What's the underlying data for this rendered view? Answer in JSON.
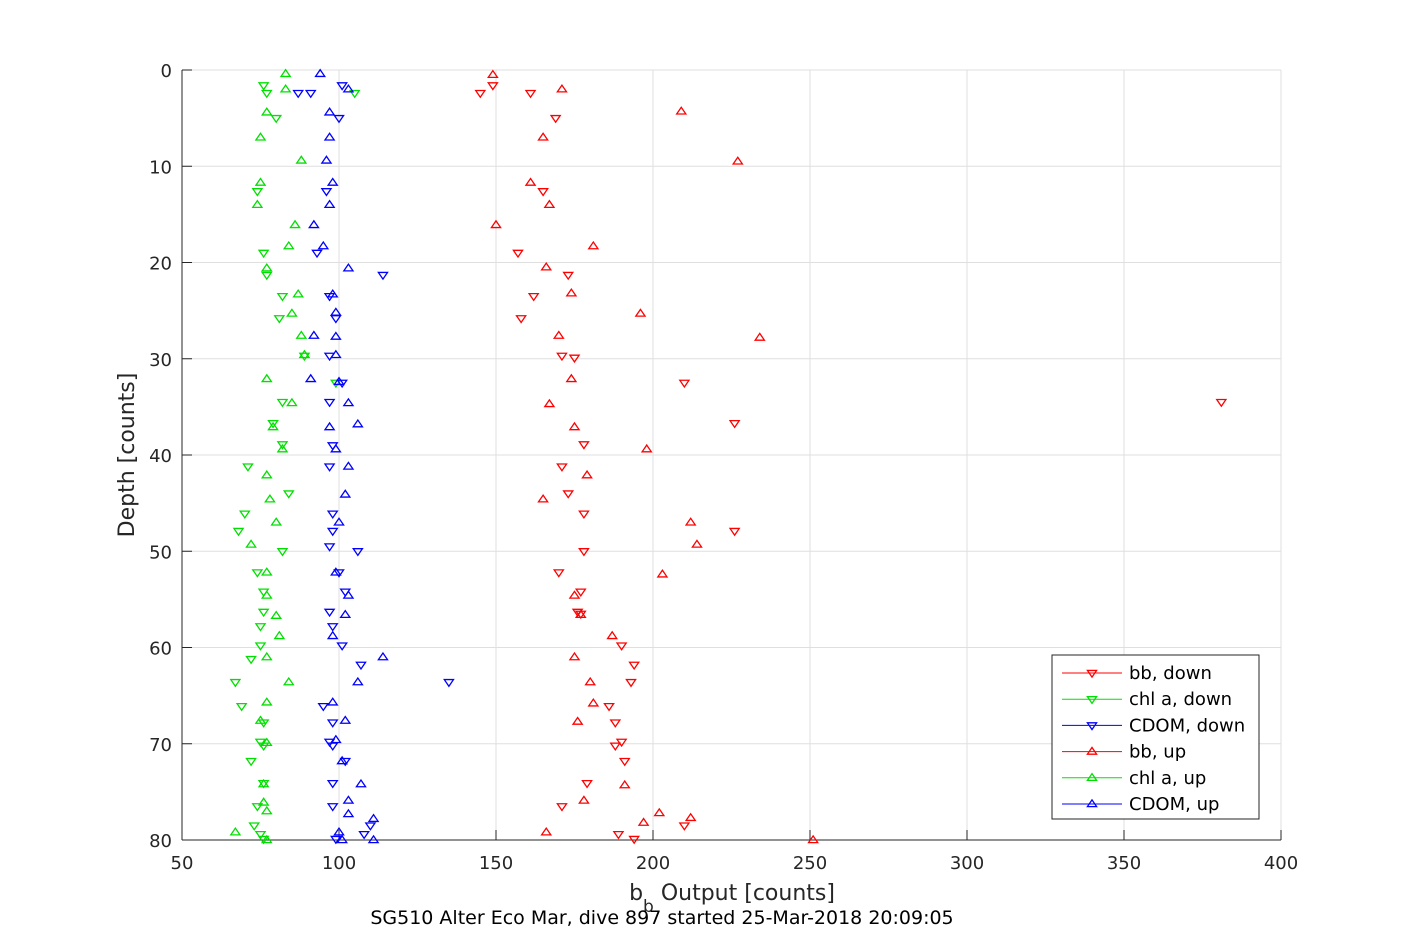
{
  "chart_data": {
    "type": "scatter",
    "title": "",
    "xlabel_main": "b",
    "xlabel_sub": "b",
    "xlabel_rest": " Output [counts]",
    "ylabel": "Depth [counts]",
    "caption": "SG510 Alter Eco Mar, dive 897 started 25-Mar-2018 20:09:05",
    "xlim": [
      50,
      400
    ],
    "ylim": [
      0,
      80
    ],
    "y_reversed": true,
    "grid": true,
    "xticks": [
      "50",
      "100",
      "150",
      "200",
      "250",
      "300",
      "350",
      "400"
    ],
    "yticks": [
      "0",
      "10",
      "20",
      "30",
      "40",
      "50",
      "60",
      "70",
      "80"
    ],
    "legend_position": "bottom-right",
    "series": [
      {
        "name": "bb, down",
        "color": "#ff0000",
        "marker": "triangle-down",
        "points": [
          [
            149,
            1.6
          ],
          [
            145,
            2.4
          ],
          [
            161,
            2.4
          ],
          [
            169,
            5.0
          ],
          [
            165,
            12.6
          ],
          [
            157,
            19.0
          ],
          [
            173,
            21.3
          ],
          [
            162,
            23.5
          ],
          [
            158,
            25.8
          ],
          [
            171,
            29.7
          ],
          [
            175,
            29.9
          ],
          [
            210,
            32.5
          ],
          [
            381,
            34.5
          ],
          [
            226,
            36.7
          ],
          [
            178,
            38.9
          ],
          [
            171,
            41.2
          ],
          [
            173,
            44.0
          ],
          [
            178,
            46.1
          ],
          [
            226,
            47.9
          ],
          [
            178,
            50.0
          ],
          [
            170,
            52.2
          ],
          [
            177,
            54.2
          ],
          [
            176,
            56.3
          ],
          [
            177,
            56.5
          ],
          [
            190,
            59.8
          ],
          [
            194,
            61.8
          ],
          [
            193,
            63.6
          ],
          [
            186,
            66.1
          ],
          [
            188,
            67.8
          ],
          [
            190,
            69.8
          ],
          [
            188,
            70.2
          ],
          [
            191,
            71.8
          ],
          [
            179,
            74.1
          ],
          [
            171,
            76.5
          ],
          [
            210,
            78.5
          ],
          [
            189,
            79.4
          ],
          [
            194,
            79.9
          ]
        ]
      },
      {
        "name": "chl a, down",
        "color": "#00e000",
        "marker": "triangle-down",
        "points": [
          [
            76,
            1.6
          ],
          [
            77,
            2.4
          ],
          [
            105,
            2.4
          ],
          [
            80,
            5.0
          ],
          [
            74,
            12.6
          ],
          [
            76,
            19.0
          ],
          [
            77,
            21.3
          ],
          [
            82,
            23.5
          ],
          [
            81,
            25.8
          ],
          [
            89,
            29.7
          ],
          [
            99,
            32.5
          ],
          [
            82,
            34.5
          ],
          [
            79,
            36.7
          ],
          [
            82,
            38.9
          ],
          [
            71,
            41.2
          ],
          [
            84,
            44.0
          ],
          [
            70,
            46.1
          ],
          [
            68,
            47.9
          ],
          [
            82,
            50.0
          ],
          [
            74,
            52.2
          ],
          [
            76,
            54.2
          ],
          [
            76,
            56.3
          ],
          [
            75,
            57.8
          ],
          [
            75,
            59.8
          ],
          [
            72,
            61.2
          ],
          [
            67,
            63.6
          ],
          [
            69,
            66.1
          ],
          [
            76,
            67.8
          ],
          [
            75,
            69.8
          ],
          [
            76,
            70.2
          ],
          [
            72,
            71.8
          ],
          [
            76,
            74.1
          ],
          [
            74,
            76.5
          ],
          [
            73,
            78.5
          ],
          [
            75,
            79.4
          ],
          [
            76,
            79.9
          ]
        ]
      },
      {
        "name": "CDOM, down",
        "color": "#0000ff",
        "marker": "triangle-down",
        "points": [
          [
            101,
            1.6
          ],
          [
            87,
            2.4
          ],
          [
            91,
            2.4
          ],
          [
            100,
            5.0
          ],
          [
            96,
            12.6
          ],
          [
            93,
            19.0
          ],
          [
            114,
            21.3
          ],
          [
            97,
            23.5
          ],
          [
            99,
            25.8
          ],
          [
            97,
            29.7
          ],
          [
            101,
            32.5
          ],
          [
            97,
            34.5
          ],
          [
            98,
            39.0
          ],
          [
            97,
            41.2
          ],
          [
            98,
            46.1
          ],
          [
            98,
            47.9
          ],
          [
            97,
            49.5
          ],
          [
            106,
            50.0
          ],
          [
            100,
            52.2
          ],
          [
            102,
            54.2
          ],
          [
            97,
            56.3
          ],
          [
            98,
            57.8
          ],
          [
            101,
            59.8
          ],
          [
            107,
            61.8
          ],
          [
            135,
            63.6
          ],
          [
            95,
            66.1
          ],
          [
            98,
            67.8
          ],
          [
            97,
            69.8
          ],
          [
            98,
            70.2
          ],
          [
            102,
            71.8
          ],
          [
            98,
            74.1
          ],
          [
            98,
            76.5
          ],
          [
            110,
            78.5
          ],
          [
            108,
            79.4
          ],
          [
            99,
            79.9
          ]
        ]
      },
      {
        "name": "bb, up",
        "color": "#ff0000",
        "marker": "triangle-up",
        "points": [
          [
            149,
            0.5
          ],
          [
            171,
            2.0
          ],
          [
            209,
            4.3
          ],
          [
            165,
            7.0
          ],
          [
            227,
            9.5
          ],
          [
            161,
            11.7
          ],
          [
            167,
            14.0
          ],
          [
            150,
            16.1
          ],
          [
            181,
            18.3
          ],
          [
            166,
            20.5
          ],
          [
            174,
            23.2
          ],
          [
            196,
            25.3
          ],
          [
            170,
            27.6
          ],
          [
            234,
            27.8
          ],
          [
            174,
            32.1
          ],
          [
            167,
            34.7
          ],
          [
            175,
            37.1
          ],
          [
            198,
            39.4
          ],
          [
            179,
            42.1
          ],
          [
            165,
            44.6
          ],
          [
            212,
            47.0
          ],
          [
            214,
            49.3
          ],
          [
            203,
            52.4
          ],
          [
            175,
            54.6
          ],
          [
            177,
            56.6
          ],
          [
            187,
            58.8
          ],
          [
            175,
            61.0
          ],
          [
            180,
            63.6
          ],
          [
            181,
            65.8
          ],
          [
            176,
            67.7
          ],
          [
            191,
            74.3
          ],
          [
            178,
            75.9
          ],
          [
            202,
            77.2
          ],
          [
            197,
            78.2
          ],
          [
            212,
            77.7
          ],
          [
            166,
            79.2
          ],
          [
            251,
            80.0
          ]
        ]
      },
      {
        "name": "chl a, up",
        "color": "#00e000",
        "marker": "triangle-up",
        "points": [
          [
            83,
            0.4
          ],
          [
            83,
            2.0
          ],
          [
            77,
            4.4
          ],
          [
            75,
            7.0
          ],
          [
            88,
            9.4
          ],
          [
            75,
            11.7
          ],
          [
            74,
            14.0
          ],
          [
            86,
            16.1
          ],
          [
            84,
            18.3
          ],
          [
            77,
            20.6
          ],
          [
            87,
            23.3
          ],
          [
            85,
            25.3
          ],
          [
            88,
            27.6
          ],
          [
            89,
            29.6
          ],
          [
            77,
            32.1
          ],
          [
            85,
            34.6
          ],
          [
            79,
            37.1
          ],
          [
            82,
            39.4
          ],
          [
            77,
            42.1
          ],
          [
            78,
            44.6
          ],
          [
            80,
            47.0
          ],
          [
            72,
            49.3
          ],
          [
            77,
            52.2
          ],
          [
            77,
            54.6
          ],
          [
            80,
            56.7
          ],
          [
            81,
            58.8
          ],
          [
            77,
            61.0
          ],
          [
            84,
            63.6
          ],
          [
            77,
            65.7
          ],
          [
            75,
            67.6
          ],
          [
            77,
            69.9
          ],
          [
            76,
            74.2
          ],
          [
            76,
            76.1
          ],
          [
            77,
            77.0
          ],
          [
            67,
            79.2
          ],
          [
            77,
            80.0
          ]
        ]
      },
      {
        "name": "CDOM, up",
        "color": "#0000ff",
        "marker": "triangle-up",
        "points": [
          [
            94,
            0.4
          ],
          [
            103,
            2.0
          ],
          [
            97,
            4.4
          ],
          [
            97,
            7.0
          ],
          [
            96,
            9.4
          ],
          [
            98,
            11.7
          ],
          [
            97,
            14.0
          ],
          [
            92,
            16.1
          ],
          [
            95,
            18.3
          ],
          [
            103,
            20.6
          ],
          [
            98,
            23.3
          ],
          [
            99,
            25.2
          ],
          [
            92,
            27.6
          ],
          [
            99,
            27.7
          ],
          [
            99,
            29.6
          ],
          [
            91,
            32.1
          ],
          [
            100,
            32.4
          ],
          [
            103,
            34.6
          ],
          [
            106,
            36.8
          ],
          [
            97,
            37.1
          ],
          [
            99,
            39.4
          ],
          [
            103,
            41.2
          ],
          [
            102,
            44.1
          ],
          [
            100,
            47.0
          ],
          [
            99,
            52.2
          ],
          [
            103,
            54.6
          ],
          [
            102,
            56.6
          ],
          [
            98,
            58.8
          ],
          [
            114,
            61.0
          ],
          [
            106,
            63.6
          ],
          [
            98,
            65.7
          ],
          [
            102,
            67.6
          ],
          [
            99,
            69.6
          ],
          [
            101,
            71.8
          ],
          [
            107,
            74.2
          ],
          [
            103,
            75.9
          ],
          [
            103,
            77.3
          ],
          [
            111,
            77.8
          ],
          [
            100,
            79.2
          ],
          [
            101,
            80.0
          ],
          [
            111,
            80.0
          ]
        ]
      }
    ]
  }
}
